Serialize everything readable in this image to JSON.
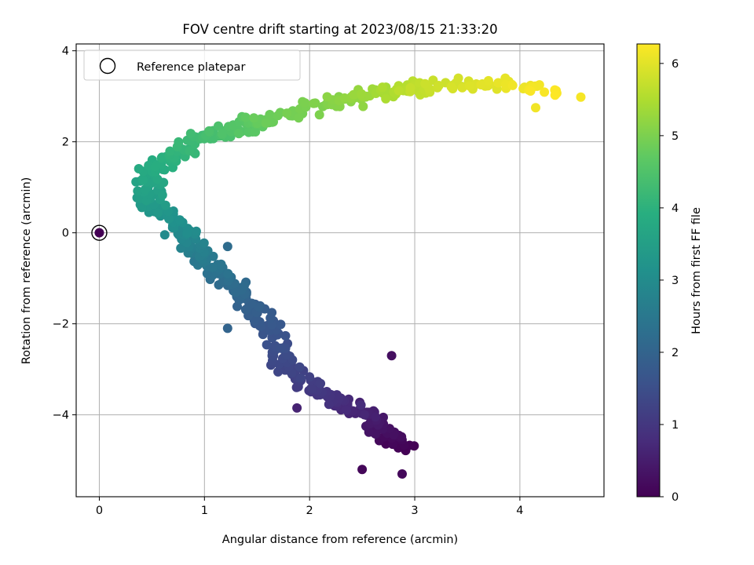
{
  "chart_data": {
    "type": "scatter",
    "title": "FOV centre drift starting at 2023/08/15 21:33:20",
    "xlabel": "Angular distance from reference (arcmin)",
    "ylabel": "Rotation from reference (arcmin)",
    "xlim": [
      -0.22,
      4.8
    ],
    "ylim": [
      -5.8,
      4.15
    ],
    "x_ticks": [
      0,
      1,
      2,
      3,
      4
    ],
    "y_ticks": [
      -4,
      -2,
      0,
      2,
      4
    ],
    "x_tick_labels": [
      "0",
      "1",
      "2",
      "3",
      "4"
    ],
    "y_tick_labels": [
      "−4",
      "−2",
      "0",
      "2",
      "4"
    ],
    "grid": true,
    "legend": {
      "position": "top-left",
      "entries": [
        "Reference platepar"
      ]
    },
    "colorbar": {
      "label": "Hours from first FF file",
      "colormap": "viridis",
      "range": [
        0,
        6.27
      ],
      "ticks": [
        0,
        1,
        2,
        3,
        4,
        5,
        6
      ],
      "tick_labels": [
        "0",
        "1",
        "2",
        "3",
        "4",
        "5",
        "6"
      ]
    },
    "reference_point": {
      "x": 0,
      "y": 0
    },
    "path_anchors": [
      {
        "t": 0.0,
        "x": 2.9,
        "y": -4.75
      },
      {
        "t": 0.5,
        "x": 2.55,
        "y": -4.0
      },
      {
        "t": 1.0,
        "x": 2.1,
        "y": -3.5
      },
      {
        "t": 1.3,
        "x": 1.8,
        "y": -3.0
      },
      {
        "t": 1.7,
        "x": 1.6,
        "y": -2.0
      },
      {
        "t": 2.1,
        "x": 1.3,
        "y": -1.3
      },
      {
        "t": 2.5,
        "x": 1.0,
        "y": -0.6
      },
      {
        "t": 3.0,
        "x": 0.75,
        "y": 0.1
      },
      {
        "t": 3.5,
        "x": 0.45,
        "y": 0.85
      },
      {
        "t": 3.9,
        "x": 0.55,
        "y": 1.55
      },
      {
        "t": 4.3,
        "x": 1.0,
        "y": 2.1
      },
      {
        "t": 4.8,
        "x": 1.6,
        "y": 2.5
      },
      {
        "t": 5.2,
        "x": 2.4,
        "y": 3.0
      },
      {
        "t": 5.7,
        "x": 3.1,
        "y": 3.2
      },
      {
        "t": 6.0,
        "x": 3.7,
        "y": 3.3
      },
      {
        "t": 6.27,
        "x": 4.4,
        "y": 3.1
      }
    ],
    "points_count": 600,
    "extra_points": [
      {
        "t": 0.25,
        "x": 2.78,
        "y": -2.7
      },
      {
        "t": 0.1,
        "x": 2.5,
        "y": -5.2
      },
      {
        "t": 0.12,
        "x": 2.88,
        "y": -5.3
      },
      {
        "t": 0.6,
        "x": 1.88,
        "y": -3.85
      },
      {
        "t": 2.0,
        "x": 1.22,
        "y": -2.1
      },
      {
        "t": 2.2,
        "x": 1.22,
        "y": -0.3
      },
      {
        "t": 6.2,
        "x": 4.58,
        "y": 2.98
      },
      {
        "t": 6.15,
        "x": 4.15,
        "y": 2.75
      }
    ]
  }
}
